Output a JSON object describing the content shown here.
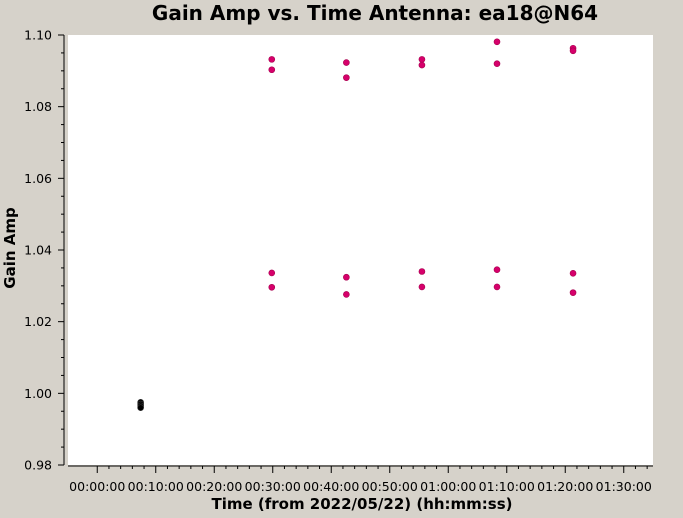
{
  "chart_data": {
    "type": "scatter",
    "title": "Gain Amp vs. Time Antenna: ea18@N64",
    "xlabel": "Time (from 2022/05/22) (hh:mm:ss)",
    "ylabel": "Gain Amp",
    "xlim_seconds": [
      -300,
      5700
    ],
    "ylim": [
      0.98,
      1.1
    ],
    "x_ticks": [
      {
        "seconds": 0,
        "label": "00:00:00"
      },
      {
        "seconds": 600,
        "label": "00:10:00"
      },
      {
        "seconds": 1200,
        "label": "00:20:00"
      },
      {
        "seconds": 1800,
        "label": "00:30:00"
      },
      {
        "seconds": 2400,
        "label": "00:40:00"
      },
      {
        "seconds": 3000,
        "label": "00:50:00"
      },
      {
        "seconds": 3600,
        "label": "01:00:00"
      },
      {
        "seconds": 4200,
        "label": "01:10:00"
      },
      {
        "seconds": 4800,
        "label": "01:20:00"
      },
      {
        "seconds": 5400,
        "label": "01:30:00"
      }
    ],
    "y_ticks": [
      {
        "value": 0.98,
        "label": "0.98"
      },
      {
        "value": 1.0,
        "label": "1.00"
      },
      {
        "value": 1.02,
        "label": "1.02"
      },
      {
        "value": 1.04,
        "label": "1.04"
      },
      {
        "value": 1.06,
        "label": "1.06"
      },
      {
        "value": 1.08,
        "label": "1.08"
      },
      {
        "value": 1.1,
        "label": "1.10"
      }
    ],
    "grid": false,
    "series": [
      {
        "color": "#000000",
        "points": [
          {
            "x": "00:07:25",
            "y": 0.9975
          },
          {
            "x": "00:07:25",
            "y": 0.997
          },
          {
            "x": "00:07:25",
            "y": 0.9965
          },
          {
            "x": "00:07:25",
            "y": 0.996
          }
        ]
      },
      {
        "color": "#d6006b",
        "points": [
          {
            "x": "00:29:50",
            "y": 1.0932
          },
          {
            "x": "00:29:50",
            "y": 1.0903
          },
          {
            "x": "00:29:50",
            "y": 1.0336
          },
          {
            "x": "00:29:50",
            "y": 1.0296
          },
          {
            "x": "00:42:35",
            "y": 1.0923
          },
          {
            "x": "00:42:35",
            "y": 1.0881
          },
          {
            "x": "00:42:35",
            "y": 1.0324
          },
          {
            "x": "00:42:35",
            "y": 1.0276
          },
          {
            "x": "00:55:30",
            "y": 1.0932
          },
          {
            "x": "00:55:30",
            "y": 1.0916
          },
          {
            "x": "00:55:30",
            "y": 1.034
          },
          {
            "x": "00:55:30",
            "y": 1.0297
          },
          {
            "x": "01:08:20",
            "y": 1.0981
          },
          {
            "x": "01:08:20",
            "y": 1.092
          },
          {
            "x": "01:08:20",
            "y": 1.0345
          },
          {
            "x": "01:08:20",
            "y": 1.0297
          },
          {
            "x": "01:21:20",
            "y": 1.0963
          },
          {
            "x": "01:21:20",
            "y": 1.0956
          },
          {
            "x": "01:21:20",
            "y": 1.0335
          },
          {
            "x": "01:21:20",
            "y": 1.0281
          }
        ]
      }
    ]
  }
}
